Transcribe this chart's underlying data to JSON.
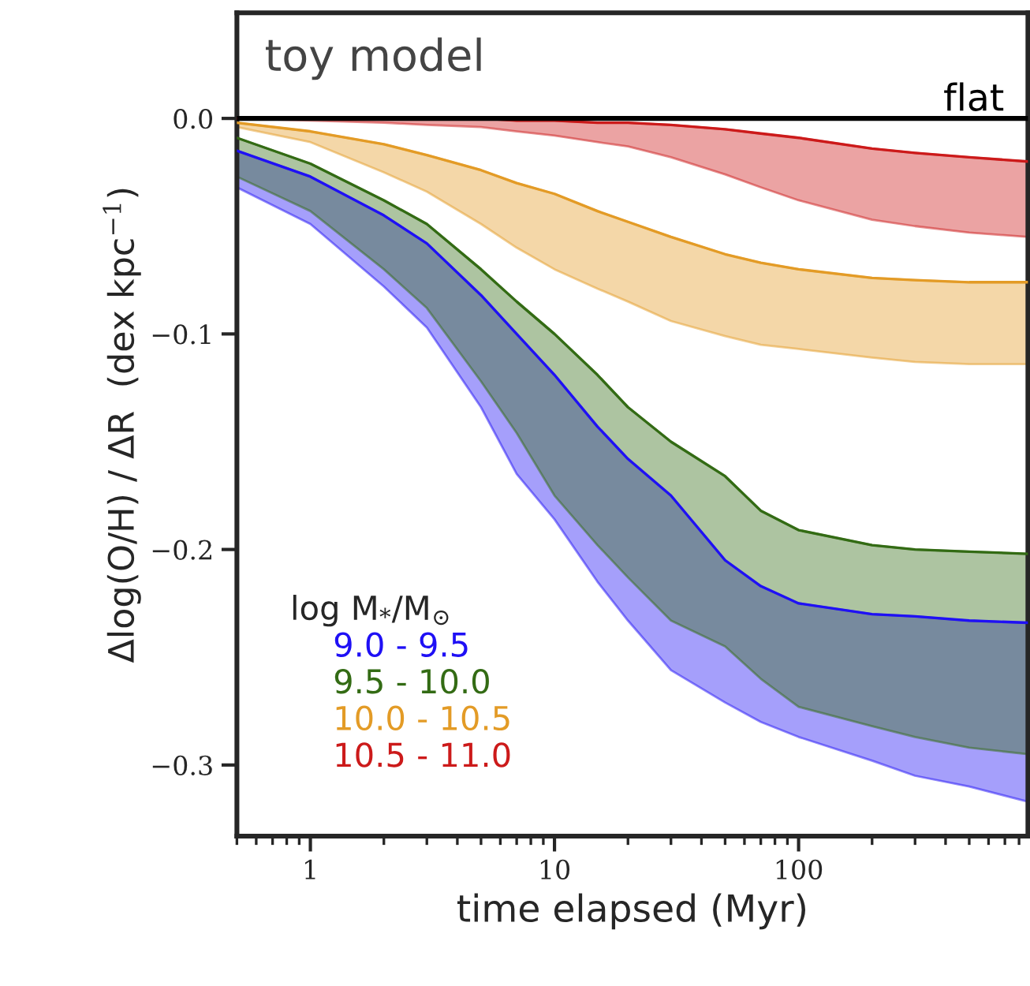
{
  "chart_data": {
    "type": "line",
    "marker": "none",
    "annotations": [
      "toy model"
    ],
    "xlabel": "time elapsed (Myr)",
    "ylabel": "Δlog(O/H) / ΔR  (dex kpc$^{−1}$)",
    "legend_title": "log M$_{*}$/M$_{⊙}$",
    "x": [
      0.5,
      1,
      2,
      3,
      5,
      7,
      10,
      15,
      20,
      30,
      50,
      70,
      100,
      200,
      300,
      500,
      870
    ],
    "log": "x",
    "xlim": [
      0.5,
      870
    ],
    "xticks": [
      1,
      10,
      100
    ],
    "ylim": [
      -0.333,
      0.049
    ],
    "yticks": [
      {
        "value": 0,
        "label": "0.0"
      },
      {
        "value": -0.1,
        "label": "−0.1"
      },
      {
        "value": -0.2,
        "label": "−0.2"
      },
      {
        "value": -0.3,
        "label": "−0.3"
      }
    ],
    "grid": false,
    "legend": "bottom left",
    "ref_lines": [
      {
        "axis": "y",
        "value": 0,
        "label": "flat",
        "color": "#000000"
      }
    ],
    "series": [
      {
        "name": "9.0 - 9.5",
        "color": "#1f10f5",
        "values": [
          -0.015,
          -0.027,
          -0.045,
          -0.058,
          -0.082,
          -0.1,
          -0.119,
          -0.143,
          -0.158,
          -0.175,
          -0.205,
          -0.217,
          -0.225,
          -0.23,
          -0.231,
          -0.233,
          -0.234
        ],
        "upper": [
          -0.015,
          -0.027,
          -0.045,
          -0.058,
          -0.082,
          -0.1,
          -0.119,
          -0.143,
          -0.158,
          -0.175,
          -0.205,
          -0.217,
          -0.225,
          -0.23,
          -0.231,
          -0.233,
          -0.234
        ],
        "lower": [
          -0.032,
          -0.049,
          -0.078,
          -0.097,
          -0.134,
          -0.165,
          -0.186,
          -0.215,
          -0.233,
          -0.256,
          -0.271,
          -0.28,
          -0.287,
          -0.298,
          -0.305,
          -0.31,
          -0.317
        ]
      },
      {
        "name": "9.5 - 10.0",
        "color": "#336b14",
        "values": [
          -0.009,
          -0.021,
          -0.038,
          -0.049,
          -0.07,
          -0.085,
          -0.1,
          -0.119,
          -0.134,
          -0.15,
          -0.166,
          -0.182,
          -0.191,
          -0.198,
          -0.2,
          -0.201,
          -0.202
        ],
        "upper": [
          -0.009,
          -0.021,
          -0.038,
          -0.049,
          -0.07,
          -0.085,
          -0.1,
          -0.119,
          -0.134,
          -0.15,
          -0.166,
          -0.182,
          -0.191,
          -0.198,
          -0.2,
          -0.201,
          -0.202
        ],
        "lower": [
          -0.027,
          -0.043,
          -0.07,
          -0.088,
          -0.122,
          -0.146,
          -0.175,
          -0.198,
          -0.213,
          -0.233,
          -0.245,
          -0.26,
          -0.273,
          -0.282,
          -0.287,
          -0.292,
          -0.295
        ]
      },
      {
        "name": "10.0 - 10.5",
        "color": "#e39b26",
        "values": [
          -0.002,
          -0.006,
          -0.012,
          -0.017,
          -0.024,
          -0.03,
          -0.035,
          -0.043,
          -0.048,
          -0.055,
          -0.063,
          -0.067,
          -0.07,
          -0.074,
          -0.075,
          -0.076,
          -0.076
        ],
        "upper": [
          -0.002,
          -0.006,
          -0.012,
          -0.017,
          -0.024,
          -0.03,
          -0.035,
          -0.043,
          -0.048,
          -0.055,
          -0.063,
          -0.067,
          -0.07,
          -0.074,
          -0.075,
          -0.076,
          -0.076
        ],
        "lower": [
          -0.004,
          -0.011,
          -0.025,
          -0.034,
          -0.049,
          -0.06,
          -0.07,
          -0.079,
          -0.085,
          -0.094,
          -0.101,
          -0.105,
          -0.107,
          -0.111,
          -0.113,
          -0.114,
          -0.114
        ]
      },
      {
        "name": "10.5 - 11.0",
        "color": "#cc1a1a",
        "values": [
          0,
          0,
          0,
          0,
          0,
          -0.001,
          -0.001,
          -0.002,
          -0.002,
          -0.003,
          -0.005,
          -0.007,
          -0.009,
          -0.014,
          -0.016,
          -0.018,
          -0.02
        ],
        "upper": [
          0,
          0,
          0,
          0,
          0,
          -0.001,
          -0.001,
          -0.002,
          -0.002,
          -0.003,
          -0.005,
          -0.007,
          -0.009,
          -0.014,
          -0.016,
          -0.018,
          -0.02
        ],
        "lower": [
          0,
          -0.001,
          -0.002,
          -0.003,
          -0.004,
          -0.006,
          -0.008,
          -0.011,
          -0.013,
          -0.018,
          -0.026,
          -0.032,
          -0.038,
          -0.047,
          -0.05,
          -0.053,
          -0.055
        ]
      }
    ]
  }
}
